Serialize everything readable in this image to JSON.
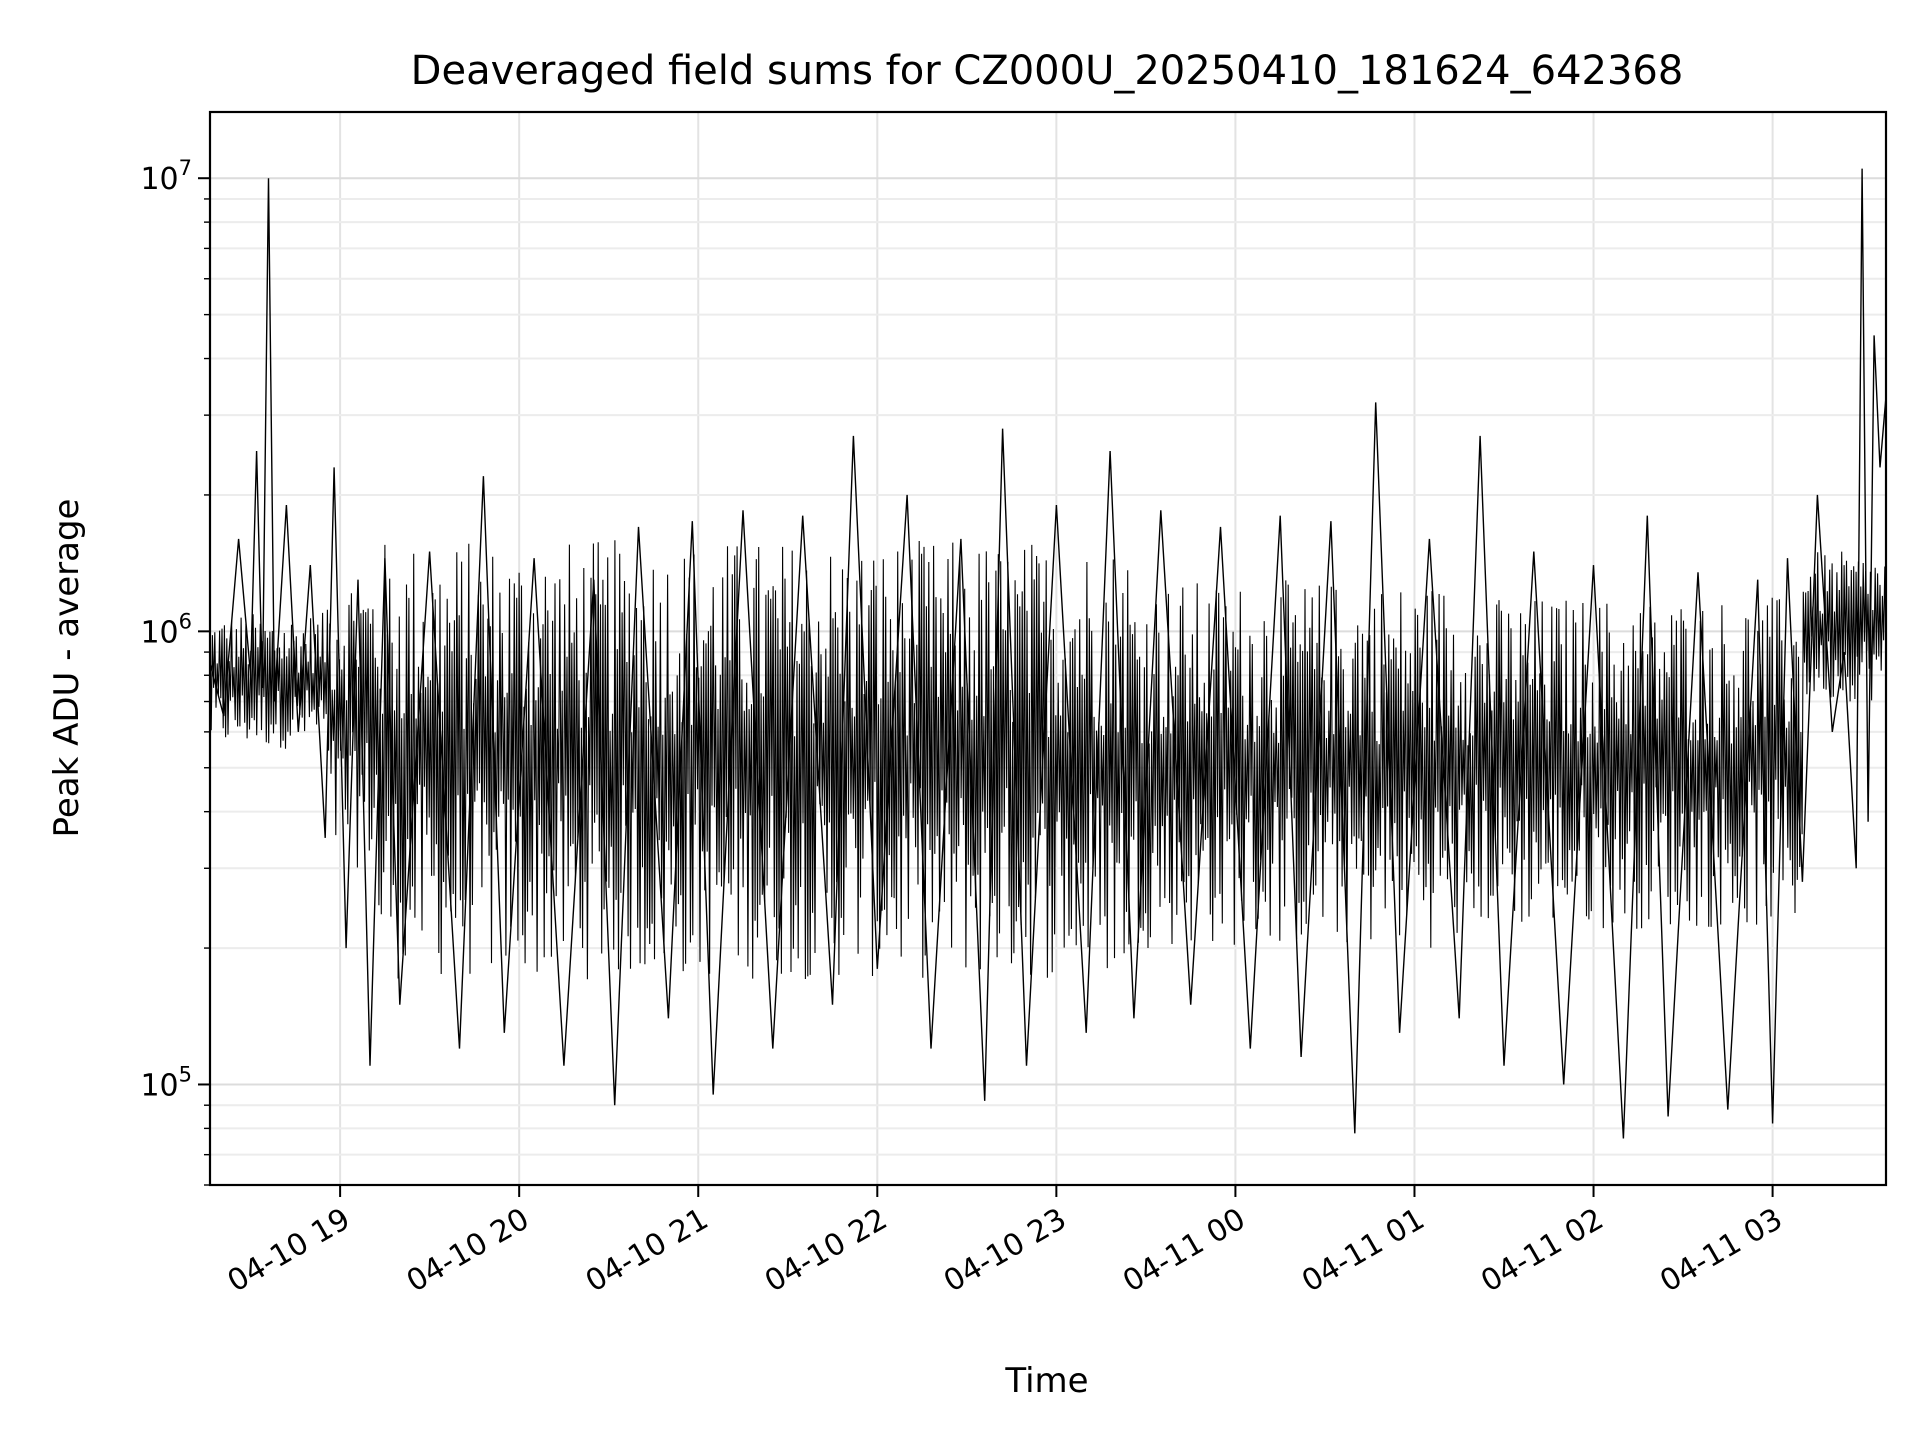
{
  "chart_data": {
    "type": "line",
    "title": "Deaveraged field sums for CZ000U_20250410_181624_642368",
    "xlabel": "Time",
    "ylabel": "Peak ADU - average",
    "yscale": "log",
    "ylim": [
      60000,
      14000000
    ],
    "xlim": [
      "2025-04-10 18:16:24",
      "2025-04-11 03:38:00"
    ],
    "x_ticks": [
      {
        "label": "04-10 19",
        "t": "2025-04-10 19:00"
      },
      {
        "label": "04-10 20",
        "t": "2025-04-10 20:00"
      },
      {
        "label": "04-10 21",
        "t": "2025-04-10 21:00"
      },
      {
        "label": "04-10 22",
        "t": "2025-04-10 22:00"
      },
      {
        "label": "04-10 23",
        "t": "2025-04-10 23:00"
      },
      {
        "label": "04-11 00",
        "t": "2025-04-11 00:00"
      },
      {
        "label": "04-11 01",
        "t": "2025-04-11 01:00"
      },
      {
        "label": "04-11 02",
        "t": "2025-04-11 02:00"
      },
      {
        "label": "04-11 03",
        "t": "2025-04-11 03:00"
      }
    ],
    "y_ticks": [
      {
        "base": "10",
        "exp": "5",
        "value": 100000
      },
      {
        "base": "10",
        "exp": "6",
        "value": 1000000
      },
      {
        "base": "10",
        "exp": "7",
        "value": 10000000
      }
    ],
    "grid": true,
    "line_color": "#000000",
    "series": [
      {
        "points": [
          [
            "2025-04-10 18:16:24",
            850000
          ],
          [
            "2025-04-10 18:21",
            650000
          ],
          [
            "2025-04-10 18:26",
            1600000
          ],
          [
            "2025-04-10 18:30",
            800000
          ],
          [
            "2025-04-10 18:32",
            2500000
          ],
          [
            "2025-04-10 18:34",
            750000
          ],
          [
            "2025-04-10 18:36",
            10000000
          ],
          [
            "2025-04-10 18:38",
            700000
          ],
          [
            "2025-04-10 18:42",
            1900000
          ],
          [
            "2025-04-10 18:46",
            600000
          ],
          [
            "2025-04-10 18:50",
            1400000
          ],
          [
            "2025-04-10 18:55",
            350000
          ],
          [
            "2025-04-10 18:58",
            2300000
          ],
          [
            "2025-04-10 19:02",
            200000
          ],
          [
            "2025-04-10 19:06",
            1300000
          ],
          [
            "2025-04-10 19:10",
            110000
          ],
          [
            "2025-04-10 19:15",
            1450000
          ],
          [
            "2025-04-10 19:20",
            150000
          ],
          [
            "2025-04-10 19:30",
            1500000
          ],
          [
            "2025-04-10 19:40",
            120000
          ],
          [
            "2025-04-10 19:48",
            2200000
          ],
          [
            "2025-04-10 19:55",
            130000
          ],
          [
            "2025-04-10 20:05",
            1450000
          ],
          [
            "2025-04-10 20:15",
            110000
          ],
          [
            "2025-04-10 20:25",
            1300000
          ],
          [
            "2025-04-10 20:32",
            90000
          ],
          [
            "2025-04-10 20:40",
            1700000
          ],
          [
            "2025-04-10 20:50",
            140000
          ],
          [
            "2025-04-10 20:58",
            1750000
          ],
          [
            "2025-04-10 21:05",
            95000
          ],
          [
            "2025-04-10 21:15",
            1850000
          ],
          [
            "2025-04-10 21:25",
            120000
          ],
          [
            "2025-04-10 21:35",
            1800000
          ],
          [
            "2025-04-10 21:45",
            150000
          ],
          [
            "2025-04-10 21:52",
            2700000
          ],
          [
            "2025-04-10 22:00",
            180000
          ],
          [
            "2025-04-10 22:10",
            2000000
          ],
          [
            "2025-04-10 22:18",
            120000
          ],
          [
            "2025-04-10 22:28",
            1600000
          ],
          [
            "2025-04-10 22:36",
            92000
          ],
          [
            "2025-04-10 22:42",
            2800000
          ],
          [
            "2025-04-10 22:50",
            110000
          ],
          [
            "2025-04-10 23:00",
            1900000
          ],
          [
            "2025-04-10 23:10",
            130000
          ],
          [
            "2025-04-10 23:18",
            2500000
          ],
          [
            "2025-04-10 23:26",
            140000
          ],
          [
            "2025-04-10 23:35",
            1850000
          ],
          [
            "2025-04-10 23:45",
            150000
          ],
          [
            "2025-04-10 23:55",
            1700000
          ],
          [
            "2025-04-11 00:05",
            120000
          ],
          [
            "2025-04-11 00:15",
            1800000
          ],
          [
            "2025-04-11 00:22",
            115000
          ],
          [
            "2025-04-11 00:32",
            1750000
          ],
          [
            "2025-04-11 00:40",
            78000
          ],
          [
            "2025-04-11 00:47",
            3200000
          ],
          [
            "2025-04-11 00:55",
            130000
          ],
          [
            "2025-04-11 01:05",
            1600000
          ],
          [
            "2025-04-11 01:15",
            140000
          ],
          [
            "2025-04-11 01:22",
            2700000
          ],
          [
            "2025-04-11 01:30",
            110000
          ],
          [
            "2025-04-11 01:40",
            1500000
          ],
          [
            "2025-04-11 01:50",
            100000
          ],
          [
            "2025-04-11 02:00",
            1400000
          ],
          [
            "2025-04-11 02:10",
            76000
          ],
          [
            "2025-04-11 02:18",
            1800000
          ],
          [
            "2025-04-11 02:25",
            85000
          ],
          [
            "2025-04-11 02:35",
            1350000
          ],
          [
            "2025-04-11 02:45",
            88000
          ],
          [
            "2025-04-11 02:55",
            1300000
          ],
          [
            "2025-04-11 03:00",
            82000
          ],
          [
            "2025-04-11 03:05",
            1450000
          ],
          [
            "2025-04-11 03:10",
            280000
          ],
          [
            "2025-04-11 03:15",
            2000000
          ],
          [
            "2025-04-11 03:20",
            600000
          ],
          [
            "2025-04-11 03:24",
            900000
          ],
          [
            "2025-04-11 03:28",
            300000
          ],
          [
            "2025-04-11 03:30",
            10500000
          ],
          [
            "2025-04-11 03:32",
            380000
          ],
          [
            "2025-04-11 03:34",
            4500000
          ],
          [
            "2025-04-11 03:36",
            2300000
          ],
          [
            "2025-04-11 03:38",
            3300000
          ]
        ]
      }
    ]
  }
}
